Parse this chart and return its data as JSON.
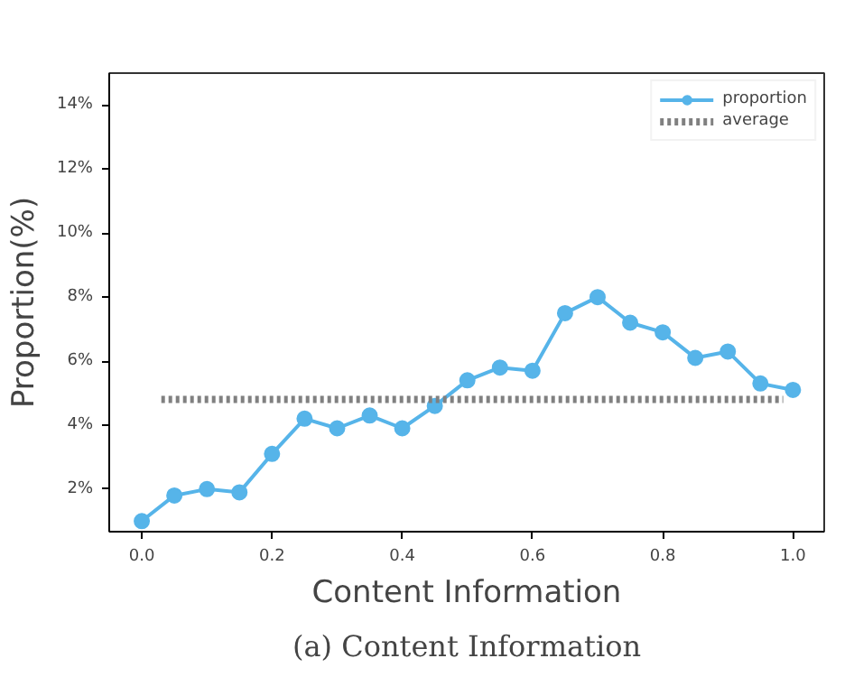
{
  "chart_data": {
    "type": "line",
    "title": "(a) Content Information",
    "xlabel": "Content Information",
    "ylabel": "Proportion(%)",
    "xlim": [
      -0.05,
      1.048
    ],
    "ylim": [
      0.67,
      15.0
    ],
    "xticks": [
      {
        "value": 0,
        "label": "0.0"
      },
      0.2,
      0.4,
      0.6,
      0.8,
      {
        "value": 1,
        "label": "1.0"
      }
    ],
    "yticks": [
      {
        "value": 2,
        "label": "2%"
      },
      {
        "value": 4,
        "label": "4%"
      },
      {
        "value": 6,
        "label": "6%"
      },
      {
        "value": 8,
        "label": "8%"
      },
      {
        "value": 10,
        "label": "10%"
      },
      {
        "value": 12,
        "label": "12%"
      },
      {
        "value": 14,
        "label": "14%"
      }
    ],
    "grid": false,
    "legend": "top right",
    "series": [
      {
        "name": "proportion",
        "color": "#56b4e9",
        "marker": "circle",
        "line_style": "solid",
        "x": [
          0,
          0.05,
          0.1,
          0.15,
          0.2,
          0.25,
          0.3,
          0.35,
          0.4,
          0.45,
          0.5,
          0.55,
          0.6,
          0.65,
          0.7,
          0.75,
          0.8,
          0.85,
          0.9,
          0.95,
          1.0
        ],
        "values": [
          1.0,
          1.8,
          2.0,
          1.9,
          3.1,
          4.2,
          3.9,
          4.3,
          3.9,
          4.6,
          5.4,
          5.8,
          5.7,
          7.5,
          8.0,
          7.2,
          6.9,
          6.1,
          6.3,
          5.3,
          5.1
        ]
      },
      {
        "name": "average",
        "color": "#808080",
        "marker": "none",
        "line_style": "dotted",
        "x": [
          0.03,
          0.985
        ],
        "values": [
          4.8,
          4.8
        ]
      }
    ]
  }
}
